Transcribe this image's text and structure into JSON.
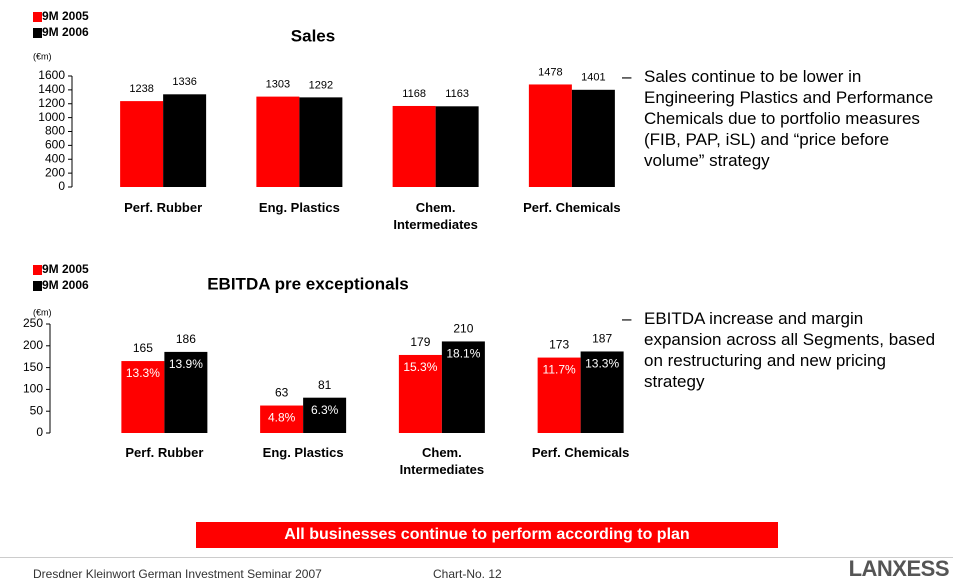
{
  "chart_data": [
    {
      "type": "bar",
      "title": "Sales",
      "unit": "(€m)",
      "categories": [
        "Perf. Rubber",
        "Eng. Plastics",
        "Chem. Intermediates",
        "Perf. Chemicals"
      ],
      "series": [
        {
          "name": "9M 2005",
          "color": "#ff0000",
          "values": [
            1238,
            1303,
            1168,
            1478
          ]
        },
        {
          "name": "9M 2006",
          "color": "#000000",
          "values": [
            1336,
            1292,
            1163,
            1401
          ]
        }
      ],
      "ylim": [
        0,
        1600
      ],
      "yticks": [
        0,
        200,
        400,
        600,
        800,
        1000,
        1200,
        1400,
        1600
      ]
    },
    {
      "type": "bar",
      "title": "EBITDA pre exceptionals",
      "unit": "(€m)",
      "categories": [
        "Perf. Rubber",
        "Eng. Plastics",
        "Chem. Intermediates",
        "Perf. Chemicals"
      ],
      "series": [
        {
          "name": "9M 2005",
          "color": "#ff0000",
          "values": [
            165,
            63,
            179,
            173
          ],
          "margin_labels": [
            "13.3%",
            "4.8%",
            "15.3%",
            "11.7%"
          ]
        },
        {
          "name": "9M 2006",
          "color": "#000000",
          "values": [
            186,
            81,
            210,
            187
          ],
          "margin_labels": [
            "13.9%",
            "6.3%",
            "18.1%",
            "13.3%"
          ]
        }
      ],
      "ylim": [
        0,
        250
      ],
      "yticks": [
        0,
        50,
        100,
        150,
        200,
        250
      ]
    }
  ],
  "bullets": [
    "Sales continue to be lower in Engineering Plastics and Performance Chemicals due to portfolio measures (FIB, PAP, iSL) and “price before volume” strategy",
    "EBITDA increase and margin expansion across all Segments, based on restructuring and new pricing strategy"
  ],
  "banner": "All businesses continue to perform according to plan",
  "footer": "Dresdner Kleinwort German Investment Seminar 2007",
  "chart_no": "Chart-No. 12",
  "logo": "LANXESS"
}
